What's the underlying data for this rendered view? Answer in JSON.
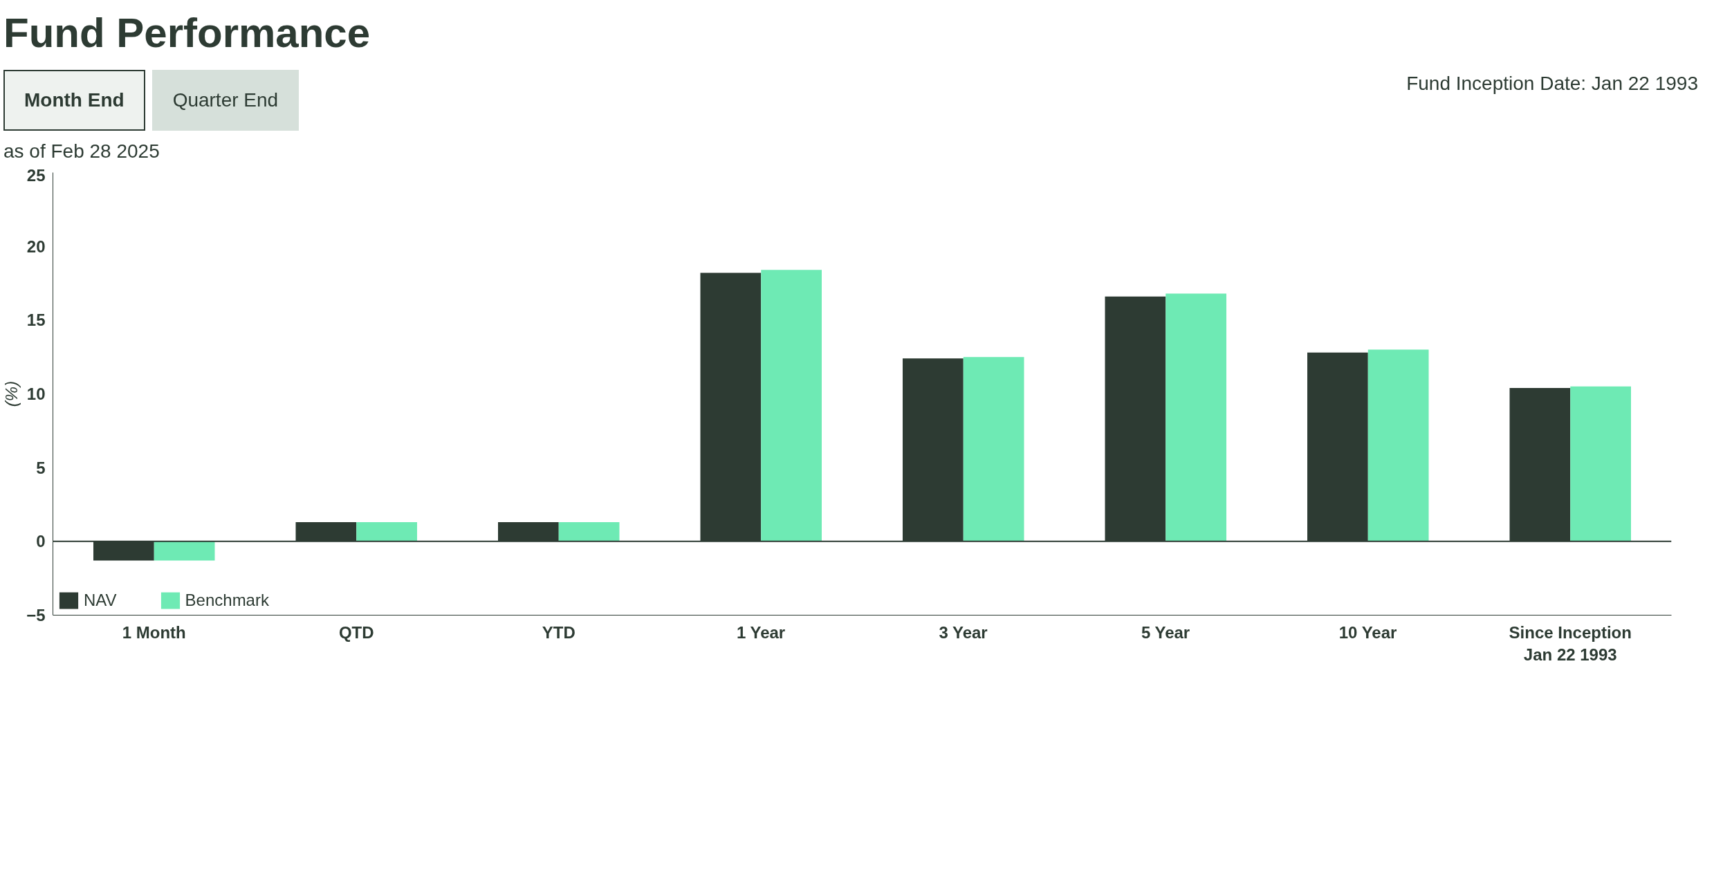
{
  "chart_data": {
    "type": "bar",
    "title": "Fund Performance",
    "subtitle": "as of Feb 28 2025",
    "ylabel": "(%)",
    "annotations": [
      "Month End",
      "Quarter End",
      "Fund Inception Date: Jan 22 1993"
    ],
    "categories": [
      "1 Month",
      "QTD",
      "YTD",
      "1 Year",
      "3 Year",
      "5 Year",
      "10 Year",
      "Since Inception\nJan 22 1993"
    ],
    "series": [
      {
        "name": "NAV",
        "color": "#2d3b33",
        "values": [
          -1.3,
          1.3,
          1.3,
          18.2,
          12.4,
          16.6,
          12.8,
          10.4
        ]
      },
      {
        "name": "Benchmark",
        "color": "#6eeab4",
        "values": [
          -1.3,
          1.3,
          1.3,
          18.4,
          12.5,
          16.8,
          13.0,
          10.5
        ]
      }
    ],
    "ref_lines": [
      {
        "axis": "y",
        "value": 0,
        "color": "#2d3b33"
      }
    ],
    "ylim": [
      -5,
      25
    ],
    "yticks": [
      -5,
      0,
      5,
      10,
      15,
      20,
      25
    ],
    "grid": false,
    "legend": "bottom left"
  }
}
